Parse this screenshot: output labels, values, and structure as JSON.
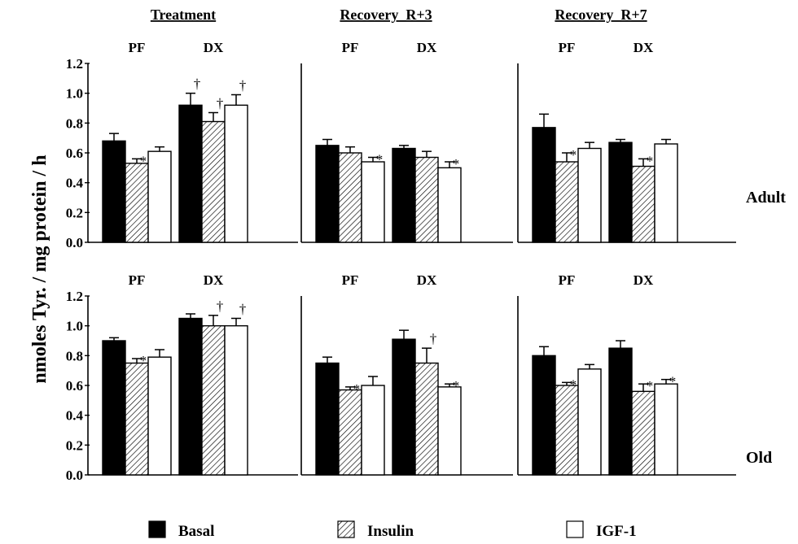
{
  "chart_data": {
    "type": "bar",
    "ylabel": "nmoles Tyr. / mg protein / h",
    "ylim": [
      0,
      1.2
    ],
    "yticks": [
      "0.0",
      "0.2",
      "0.4",
      "0.6",
      "0.8",
      "1.0",
      "1.2"
    ],
    "column_titles": [
      "Treatment",
      "Recovery  R+3",
      "Recovery  R+7"
    ],
    "row_labels": [
      "Adult",
      "Old"
    ],
    "group_labels": [
      "PF",
      "DX"
    ],
    "legend": [
      {
        "name": "Basal",
        "pattern": "solid-black"
      },
      {
        "name": "Insulin",
        "pattern": "hatched"
      },
      {
        "name": "IGF-1",
        "pattern": "white"
      }
    ],
    "colors": {
      "basal": "#000000",
      "insulin_hatch": "#000000",
      "igf1": "#ffffff"
    },
    "series_order": [
      "Basal",
      "Insulin",
      "IGF-1"
    ],
    "panels": [
      {
        "row": "Adult",
        "column": "Treatment",
        "groups": [
          {
            "label": "PF",
            "values": [
              0.68,
              0.53,
              0.61
            ],
            "errors": [
              0.05,
              0.03,
              0.03
            ],
            "marks": [
              "",
              "*",
              ""
            ]
          },
          {
            "label": "DX",
            "values": [
              0.92,
              0.81,
              0.92
            ],
            "errors": [
              0.08,
              0.06,
              0.07
            ],
            "marks": [
              "†",
              "†",
              "†"
            ]
          }
        ]
      },
      {
        "row": "Adult",
        "column": "Recovery  R+3",
        "groups": [
          {
            "label": "PF",
            "values": [
              0.65,
              0.6,
              0.54
            ],
            "errors": [
              0.04,
              0.04,
              0.03
            ],
            "marks": [
              "",
              "",
              "*"
            ]
          },
          {
            "label": "DX",
            "values": [
              0.63,
              0.57,
              0.5
            ],
            "errors": [
              0.02,
              0.04,
              0.04
            ],
            "marks": [
              "",
              "",
              "*"
            ]
          }
        ]
      },
      {
        "row": "Adult",
        "column": "Recovery  R+7",
        "groups": [
          {
            "label": "PF",
            "values": [
              0.77,
              0.54,
              0.63
            ],
            "errors": [
              0.09,
              0.06,
              0.04
            ],
            "marks": [
              "",
              "*",
              ""
            ]
          },
          {
            "label": "DX",
            "values": [
              0.67,
              0.51,
              0.66
            ],
            "errors": [
              0.02,
              0.05,
              0.03
            ],
            "marks": [
              "",
              "*",
              ""
            ]
          }
        ]
      },
      {
        "row": "Old",
        "column": "Treatment",
        "groups": [
          {
            "label": "PF",
            "values": [
              0.9,
              0.75,
              0.79
            ],
            "errors": [
              0.02,
              0.03,
              0.05
            ],
            "marks": [
              "",
              "*",
              ""
            ]
          },
          {
            "label": "DX",
            "values": [
              1.05,
              1.0,
              1.0
            ],
            "errors": [
              0.03,
              0.07,
              0.05
            ],
            "marks": [
              "",
              "†",
              "†"
            ]
          }
        ]
      },
      {
        "row": "Old",
        "column": "Recovery  R+3",
        "groups": [
          {
            "label": "PF",
            "values": [
              0.75,
              0.57,
              0.6
            ],
            "errors": [
              0.04,
              0.02,
              0.06
            ],
            "marks": [
              "",
              "*",
              ""
            ]
          },
          {
            "label": "DX",
            "values": [
              0.91,
              0.75,
              0.59
            ],
            "errors": [
              0.06,
              0.1,
              0.02
            ],
            "marks": [
              "",
              "†",
              "*"
            ]
          }
        ]
      },
      {
        "row": "Old",
        "column": "Recovery  R+7",
        "groups": [
          {
            "label": "PF",
            "values": [
              0.8,
              0.6,
              0.71
            ],
            "errors": [
              0.06,
              0.02,
              0.03
            ],
            "marks": [
              "",
              "*",
              ""
            ]
          },
          {
            "label": "DX",
            "values": [
              0.85,
              0.56,
              0.61
            ],
            "errors": [
              0.05,
              0.05,
              0.03
            ],
            "marks": [
              "",
              "*",
              "*"
            ]
          }
        ]
      }
    ]
  }
}
